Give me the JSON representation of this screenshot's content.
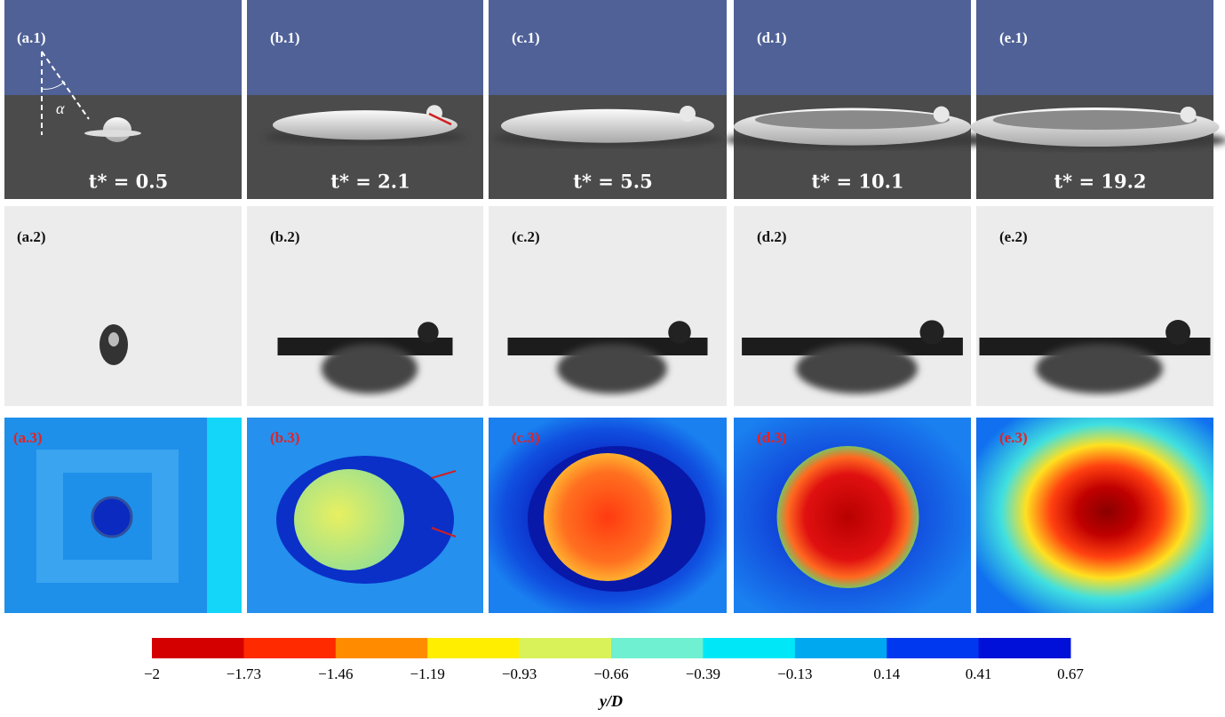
{
  "panels": [
    {
      "label1": "(a.1)",
      "time": "t* = 0.5",
      "label2": "(a.2)",
      "label3": "(a.3)",
      "angle": "α"
    },
    {
      "label1": "(b.1)",
      "time": "t* = 2.1",
      "label2": "(b.2)",
      "label3": "(b.3)"
    },
    {
      "label1": "(c.1)",
      "time": "t* = 5.5",
      "label2": "(c.2)",
      "label3": "(c.3)"
    },
    {
      "label1": "(d.1)",
      "time": "t* = 10.1",
      "label2": "(d.2)",
      "label3": "(d.3)"
    },
    {
      "label1": "(e.1)",
      "time": "t* = 19.2",
      "label2": "(e.2)",
      "label3": "(e.3)"
    }
  ],
  "colorbar": {
    "colors": [
      "#d40000",
      "#ff2a00",
      "#ff8c00",
      "#ffee00",
      "#d9f25a",
      "#6ff0d0",
      "#00e8f8",
      "#00a8f0",
      "#0038f0",
      "#0010d8"
    ],
    "ticks": [
      "−2",
      "−1.73",
      "−1.46",
      "−1.19",
      "−0.93",
      "−0.66",
      "−0.39",
      "−0.13",
      "0.14",
      "0.41",
      "0.67"
    ],
    "label": "y/D"
  }
}
